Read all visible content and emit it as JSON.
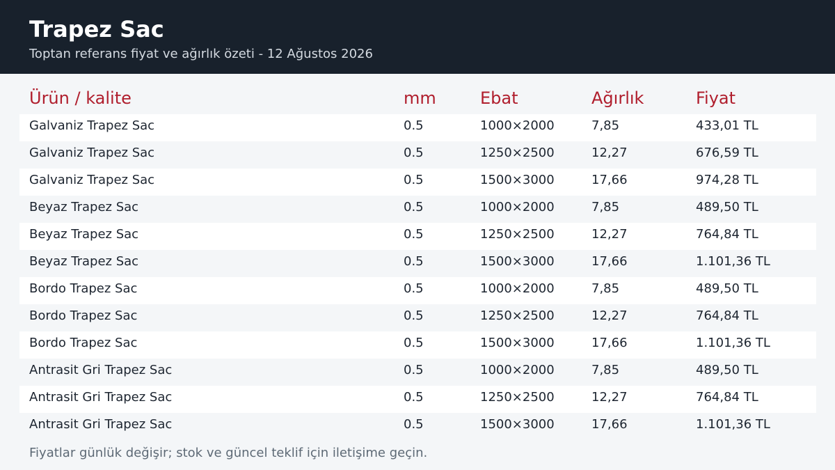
{
  "header": {
    "title": "Trapez Sac",
    "subtitle": "Toptan referans fiyat ve ağırlık özeti - 12 Ağustos 2026"
  },
  "table": {
    "columns": [
      "Ürün / kalite",
      "mm",
      "Ebat",
      "Ağırlık",
      "Fiyat"
    ],
    "rows": [
      [
        "Galvaniz Trapez Sac",
        "0.5",
        "1000×2000",
        "7,85",
        "433,01 TL"
      ],
      [
        "Galvaniz Trapez Sac",
        "0.5",
        "1250×2500",
        "12,27",
        "676,59 TL"
      ],
      [
        "Galvaniz Trapez Sac",
        "0.5",
        "1500×3000",
        "17,66",
        "974,28 TL"
      ],
      [
        "Beyaz Trapez Sac",
        "0.5",
        "1000×2000",
        "7,85",
        "489,50 TL"
      ],
      [
        "Beyaz Trapez Sac",
        "0.5",
        "1250×2500",
        "12,27",
        "764,84 TL"
      ],
      [
        "Beyaz Trapez Sac",
        "0.5",
        "1500×3000",
        "17,66",
        "1.101,36 TL"
      ],
      [
        "Bordo Trapez Sac",
        "0.5",
        "1000×2000",
        "7,85",
        "489,50 TL"
      ],
      [
        "Bordo Trapez Sac",
        "0.5",
        "1250×2500",
        "12,27",
        "764,84 TL"
      ],
      [
        "Bordo Trapez Sac",
        "0.5",
        "1500×3000",
        "17,66",
        "1.101,36 TL"
      ],
      [
        "Antrasit Gri Trapez Sac",
        "0.5",
        "1000×2000",
        "7,85",
        "489,50 TL"
      ],
      [
        "Antrasit Gri Trapez Sac",
        "0.5",
        "1250×2500",
        "12,27",
        "764,84 TL"
      ],
      [
        "Antrasit Gri Trapez Sac",
        "0.5",
        "1500×3000",
        "17,66",
        "1.101,36 TL"
      ]
    ]
  },
  "footnote": "Fiyatlar günlük değişir; stok ve güncel teklif için iletişime geçin.",
  "colors": {
    "header_bg": "#18212c",
    "accent": "#b01e2d",
    "page_bg": "#f4f6f8"
  }
}
